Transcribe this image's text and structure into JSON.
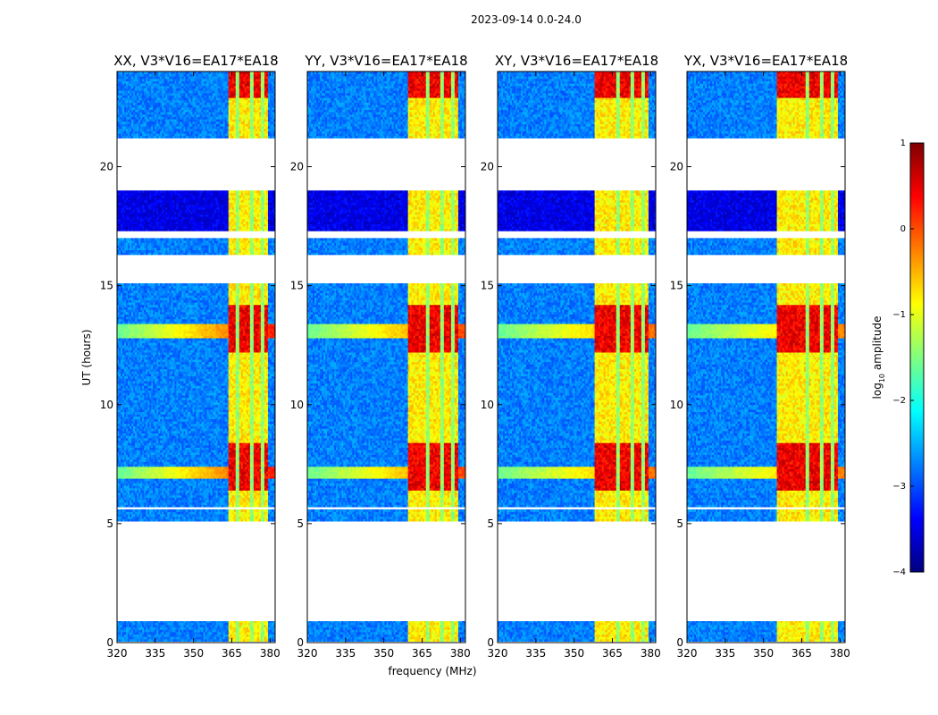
{
  "figure_title": "2023-09-14 0.0-24.0",
  "chart_data": {
    "type": "heatmap",
    "suptitle": "2023-09-14 0.0-24.0",
    "xlabel": "frequency (MHz)",
    "ylabel": "UT (hours)",
    "xlim": [
      320,
      382
    ],
    "ylim": [
      0,
      24
    ],
    "xticks": [
      "320",
      "335",
      "350",
      "365",
      "380"
    ],
    "yticks": [
      "0",
      "5",
      "10",
      "15",
      "20"
    ],
    "panels": [
      {
        "title": "XX, V3*V16=EA17*EA18",
        "band_start": 363.5,
        "drift_strength": 0.95
      },
      {
        "title": "YY, V3*V16=EA17*EA18",
        "band_start": 359.5,
        "drift_strength": 0.85
      },
      {
        "title": "XY, V3*V16=EA17*EA18",
        "band_start": 358.0,
        "drift_strength": 0.75
      },
      {
        "title": "YX, V3*V16=EA17*EA18",
        "band_start": 355.0,
        "drift_strength": 0.7
      }
    ],
    "signal_band_mhz": [
      363.5,
      379
    ],
    "channel_gaps_mhz": [
      367.5,
      372.5,
      377.0
    ],
    "data_hours": [
      [
        0.05,
        0.9
      ],
      [
        5.1,
        5.6
      ],
      [
        5.7,
        9.9
      ],
      [
        9.9,
        15.1
      ],
      [
        16.3,
        17.0
      ],
      [
        17.3,
        19.0
      ],
      [
        21.2,
        24.0
      ]
    ],
    "colorbar": {
      "label": "log10 amplitude",
      "label_main": "log",
      "label_sub": "10",
      "label_rest": " amplitude",
      "range": [
        -4,
        1
      ],
      "ticks": [
        "1",
        "0",
        "−1",
        "−2",
        "−3",
        "−4"
      ],
      "colormap": "jet"
    }
  }
}
